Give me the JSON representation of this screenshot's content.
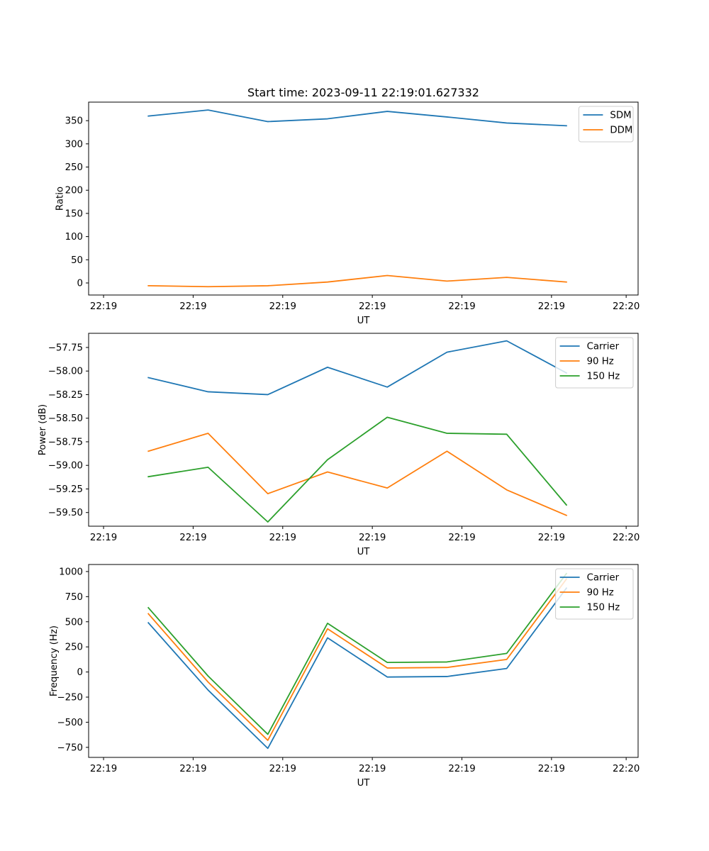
{
  "chart_data": [
    {
      "type": "line",
      "title": "Start time: 2023-09-11 22:19:01.627332",
      "xlabel": "UT",
      "ylabel": "Ratio",
      "x": [
        1,
        2,
        3,
        4,
        5,
        6,
        7,
        8
      ],
      "xlim": [
        0,
        9.2
      ],
      "x_ticks": [
        0.25,
        1.75,
        3.25,
        4.75,
        6.25,
        7.75,
        9.0
      ],
      "x_tick_labels": [
        "22:19",
        "22:19",
        "22:19",
        "22:19",
        "22:19",
        "22:19",
        "22:20"
      ],
      "ylim": [
        -26,
        390
      ],
      "y_ticks": [
        0,
        50,
        100,
        150,
        200,
        250,
        300,
        350
      ],
      "y_tick_labels": [
        "0",
        "50",
        "100",
        "150",
        "200",
        "250",
        "300",
        "350"
      ],
      "legend_position": "top-right",
      "grid": false,
      "series": [
        {
          "name": "SDM",
          "color": "#1f77b4",
          "values": [
            360,
            373,
            348,
            354,
            370,
            358,
            345,
            339
          ]
        },
        {
          "name": "DDM",
          "color": "#ff7f0e",
          "values": [
            -6,
            -8,
            -6,
            2,
            16,
            4,
            12,
            2
          ]
        }
      ]
    },
    {
      "type": "line",
      "title": "",
      "xlabel": "UT",
      "ylabel": "Power (dB)",
      "x": [
        1,
        2,
        3,
        4,
        5,
        6,
        7,
        8
      ],
      "xlim": [
        0,
        9.2
      ],
      "x_ticks": [
        0.25,
        1.75,
        3.25,
        4.75,
        6.25,
        7.75,
        9.0
      ],
      "x_tick_labels": [
        "22:19",
        "22:19",
        "22:19",
        "22:19",
        "22:19",
        "22:19",
        "22:20"
      ],
      "ylim": [
        -59.645,
        -57.6
      ],
      "y_ticks": [
        -57.75,
        -58.0,
        -58.25,
        -58.5,
        -58.75,
        -59.0,
        -59.25,
        -59.5
      ],
      "y_tick_labels": [
        "−57.75",
        "−58.00",
        "−58.25",
        "−58.50",
        "−58.75",
        "−59.00",
        "−59.25",
        "−59.50"
      ],
      "legend_position": "top-right",
      "grid": false,
      "series": [
        {
          "name": "Carrier",
          "color": "#1f77b4",
          "values": [
            -58.07,
            -58.22,
            -58.25,
            -57.96,
            -58.17,
            -57.8,
            -57.68,
            -58.02
          ]
        },
        {
          "name": "90 Hz",
          "color": "#ff7f0e",
          "values": [
            -58.85,
            -58.66,
            -59.3,
            -59.07,
            -59.24,
            -58.85,
            -59.26,
            -59.53
          ]
        },
        {
          "name": "150 Hz",
          "color": "#2ca02c",
          "values": [
            -59.12,
            -59.02,
            -59.6,
            -58.94,
            -58.49,
            -58.66,
            -58.67,
            -59.42
          ]
        }
      ]
    },
    {
      "type": "line",
      "title": "",
      "xlabel": "UT",
      "ylabel": "Frequency (Hz)",
      "x": [
        1,
        2,
        3,
        4,
        5,
        6,
        7,
        8
      ],
      "xlim": [
        0,
        9.2
      ],
      "x_ticks": [
        0.25,
        1.75,
        3.25,
        4.75,
        6.25,
        7.75,
        9.0
      ],
      "x_tick_labels": [
        "22:19",
        "22:19",
        "22:19",
        "22:19",
        "22:19",
        "22:19",
        "22:20"
      ],
      "ylim": [
        -850,
        1070
      ],
      "y_ticks": [
        -750,
        -500,
        -250,
        0,
        250,
        500,
        750,
        1000
      ],
      "y_tick_labels": [
        "−750",
        "−500",
        "−250",
        "0",
        "250",
        "500",
        "750",
        "1000"
      ],
      "legend_position": "top-right",
      "grid": false,
      "series": [
        {
          "name": "Carrier",
          "color": "#1f77b4",
          "values": [
            490,
            -180,
            -760,
            340,
            -50,
            -45,
            35,
            835
          ]
        },
        {
          "name": "90 Hz",
          "color": "#ff7f0e",
          "values": [
            580,
            -100,
            -680,
            430,
            40,
            45,
            125,
            925
          ]
        },
        {
          "name": "150 Hz",
          "color": "#2ca02c",
          "values": [
            640,
            -40,
            -620,
            485,
            95,
            100,
            185,
            980
          ]
        }
      ]
    }
  ]
}
